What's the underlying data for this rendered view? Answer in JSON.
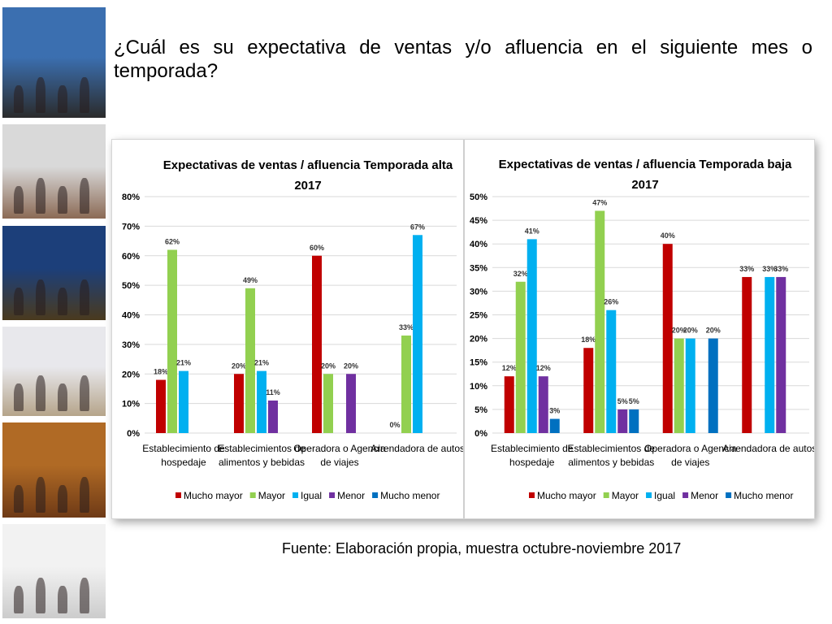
{
  "slide": {
    "title": "¿Cuál es su expectativa de ventas y/o afluencia en el siguiente mes o temporada?",
    "source": "Fuente: Elaboración propia, muestra octubre-noviembre 2017"
  },
  "photos": [
    {
      "name": "photo-cathedral-terrace",
      "sky": "#3b6fb0",
      "ground": "#2b2b2b"
    },
    {
      "name": "photo-street-crowd",
      "sky": "#d9d9d9",
      "ground": "#8b6a55"
    },
    {
      "name": "photo-night-patio",
      "sky": "#1c3f7a",
      "ground": "#4a3a1e"
    },
    {
      "name": "photo-church-plaza",
      "sky": "#e8e8ec",
      "ground": "#b5a48a"
    },
    {
      "name": "photo-hotel-room",
      "sky": "#b06a25",
      "ground": "#6e3a16"
    },
    {
      "name": "photo-mall-shoppers",
      "sky": "#f2f2f2",
      "ground": "#cccccc"
    }
  ],
  "colors": {
    "Mucho mayor": "#c00000",
    "Mayor": "#92d050",
    "Igual": "#00b0f0",
    "Menor": "#7030a0",
    "Mucho menor": "#0070c0"
  },
  "chart_data": [
    {
      "type": "bar",
      "title": [
        "Expectativas de ventas / afluencia Temporada alta",
        "2017"
      ],
      "categories": [
        [
          "Establecimiento de",
          "hospedaje"
        ],
        [
          "Establecimientos de",
          "alimentos y bebidas"
        ],
        [
          "Operadora o Agencia",
          "de viajes"
        ],
        [
          "Arrendadora de autos"
        ]
      ],
      "ylim": [
        0,
        80
      ],
      "yticks": [
        0,
        10,
        20,
        30,
        40,
        50,
        60,
        70,
        80
      ],
      "legend_position": "bottom",
      "grid": true,
      "legend": [
        "Mucho mayor",
        "Mayor",
        "Igual",
        "Menor",
        "Mucho menor"
      ],
      "series": [
        {
          "name": "Mucho mayor",
          "values": [
            18,
            20,
            60,
            0
          ],
          "labels": [
            "18%",
            "20%",
            "60%",
            "0%"
          ]
        },
        {
          "name": "Mayor",
          "values": [
            62,
            49,
            20,
            33
          ],
          "labels": [
            "62%",
            "49%",
            "20%",
            "33%"
          ]
        },
        {
          "name": "Igual",
          "values": [
            21,
            21,
            null,
            67
          ],
          "labels": [
            "21%",
            "21%",
            "",
            "67%"
          ]
        },
        {
          "name": "Menor",
          "values": [
            null,
            11,
            20,
            null
          ],
          "labels": [
            "",
            "11%",
            "20%",
            ""
          ]
        },
        {
          "name": "Mucho menor",
          "values": [
            null,
            null,
            null,
            null
          ],
          "labels": [
            "",
            "",
            "",
            ""
          ]
        }
      ]
    },
    {
      "type": "bar",
      "title": [
        "Expectativas de ventas / afluencia Temporada baja",
        "2017"
      ],
      "categories": [
        [
          "Establecimiento de",
          "hospedaje"
        ],
        [
          "Establecimientos de",
          "alimentos y bebidas"
        ],
        [
          "Operadora o Agencia",
          "de viajes"
        ],
        [
          "Arrendadora de autos"
        ]
      ],
      "ylim": [
        0,
        50
      ],
      "yticks": [
        0,
        5,
        10,
        15,
        20,
        25,
        30,
        35,
        40,
        45,
        50
      ],
      "legend_position": "bottom",
      "grid": true,
      "legend": [
        "Mucho mayor",
        "Mayor",
        "Igual",
        "Menor",
        "Mucho menor"
      ],
      "series": [
        {
          "name": "Mucho mayor",
          "values": [
            12,
            18,
            40,
            33
          ],
          "labels": [
            "12%",
            "18%",
            "40%",
            "33%"
          ]
        },
        {
          "name": "Mayor",
          "values": [
            32,
            47,
            20,
            null
          ],
          "labels": [
            "32%",
            "47%",
            "20%",
            ""
          ]
        },
        {
          "name": "Igual",
          "values": [
            41,
            26,
            20,
            33
          ],
          "labels": [
            "41%",
            "26%",
            "20%",
            "33%"
          ]
        },
        {
          "name": "Menor",
          "values": [
            12,
            5,
            null,
            33
          ],
          "labels": [
            "12%",
            "5%",
            "",
            "33%"
          ]
        },
        {
          "name": "Mucho menor",
          "values": [
            3,
            5,
            20,
            null
          ],
          "labels": [
            "3%",
            "5%",
            "20%",
            ""
          ]
        }
      ]
    }
  ]
}
